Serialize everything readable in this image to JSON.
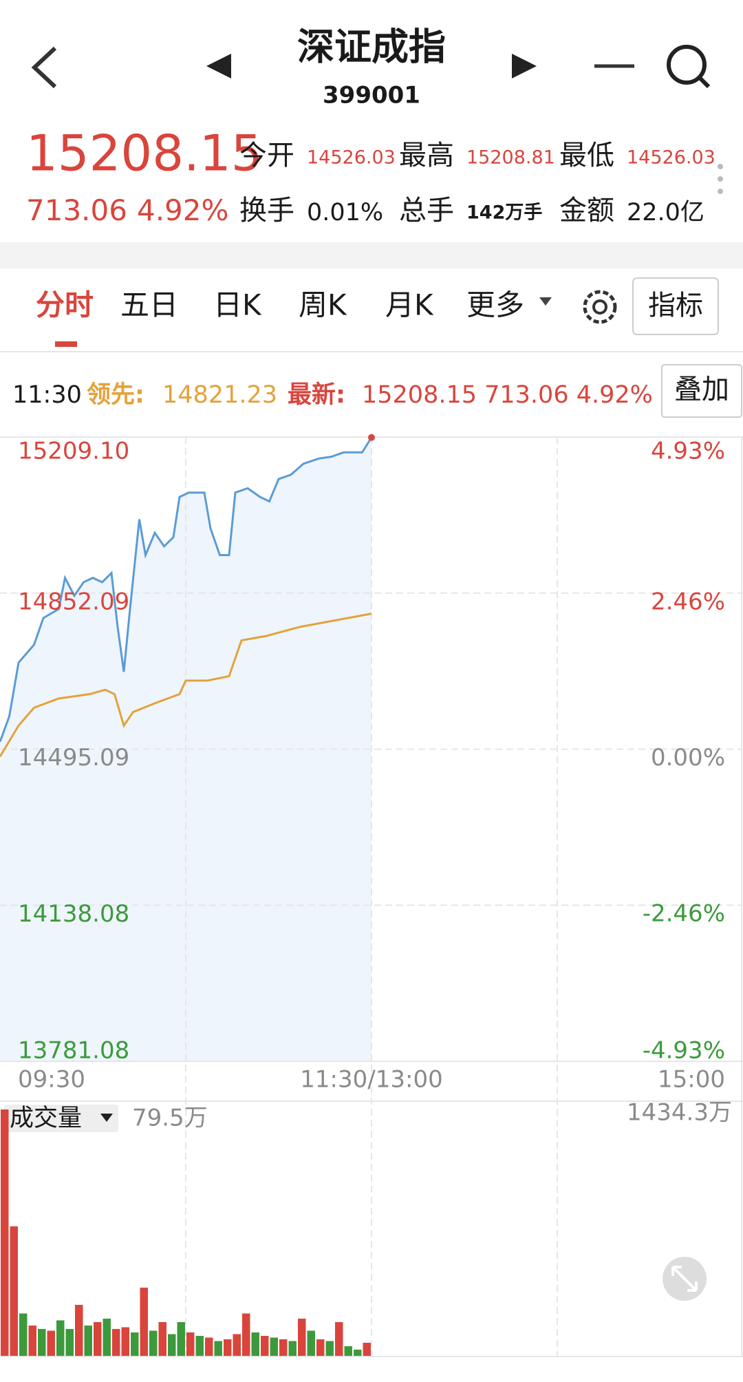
{
  "header": {
    "title": "深证成指",
    "code": "399001"
  },
  "quote": {
    "price": "15208.15",
    "change": "713.06",
    "pct": "4.92%",
    "fields": [
      {
        "label": "今开",
        "value": "14526.03"
      },
      {
        "label": "最高",
        "value": "15208.81"
      },
      {
        "label": "最低",
        "value": "14526.03"
      },
      {
        "label": "换手",
        "value": "0.01%"
      },
      {
        "label": "总手",
        "value": "142万手"
      },
      {
        "label": "金额",
        "value": "22.0亿"
      }
    ]
  },
  "tabs": [
    "分时",
    "五日",
    "日K",
    "周K",
    "月K",
    "更多"
  ],
  "indicator_button": "指标",
  "info": {
    "time": "11:30",
    "lead_label": "领先:",
    "lead_value": "14821.23",
    "latest_label": "最新:",
    "latest_value": "15208.15 713.06 4.92%"
  },
  "overlay_button": "叠加",
  "chart_data": [
    {
      "type": "line",
      "xlim": [
        0,
        240
      ],
      "xticks": [
        {
          "value": 0,
          "label": "09:30"
        },
        {
          "value": 120,
          "label": "11:30/13:00"
        },
        {
          "value": 240,
          "label": "15:00"
        }
      ],
      "xgrid": [
        60,
        120,
        180
      ],
      "ylim": [
        13781.08,
        15209.1
      ],
      "yticks": [
        {
          "value": 15209.1,
          "label": "15209.10"
        },
        14852.09,
        14495.09,
        14138.08,
        13781.08
      ],
      "y2lim": [
        -4.93,
        4.93
      ],
      "y2ticks": [
        {
          "value": 4.93,
          "label": "4.93%"
        },
        {
          "value": 2.46,
          "label": "2.46%"
        },
        {
          "value": 0,
          "label": "0.00%"
        },
        {
          "value": -2.46,
          "label": "-2.46%"
        },
        {
          "value": -4.93,
          "label": "-4.93%"
        }
      ],
      "grid": true,
      "series": [
        {
          "color": "#5b9bd5",
          "fill": "#eef5fc",
          "x": [
            0,
            3,
            6,
            11,
            14,
            19,
            21,
            24,
            27,
            30,
            33,
            36,
            38,
            40,
            42,
            45,
            47,
            50,
            53,
            56,
            58,
            61,
            66,
            68,
            71,
            74,
            76,
            80,
            84,
            87,
            90,
            94,
            98,
            103,
            107,
            111,
            117,
            120
          ],
          "values": [
            14512,
            14570,
            14693,
            14734,
            14795,
            14816,
            14887,
            14846,
            14877,
            14887,
            14877,
            14898,
            14775,
            14672,
            14816,
            15021,
            14939,
            14990,
            14959,
            14980,
            15072,
            15082,
            15082,
            15000,
            14939,
            14939,
            15082,
            15092,
            15072,
            15062,
            15113,
            15123,
            15148,
            15160,
            15164,
            15174,
            15174,
            15208.15
          ]
        },
        {
          "color": "#e3a23a",
          "x": [
            0,
            6,
            11,
            19,
            29,
            34,
            37,
            40,
            43,
            50,
            58,
            60,
            67,
            74,
            78,
            86,
            97,
            120
          ],
          "values": [
            14478,
            14549,
            14590,
            14611,
            14621,
            14631,
            14621,
            14549,
            14580,
            14600,
            14621,
            14652,
            14652,
            14662,
            14744,
            14754,
            14775,
            14805
          ]
        }
      ]
    },
    {
      "type": "bar",
      "title": "成交量",
      "current_label": "79.5万",
      "xlim": [
        0,
        240
      ],
      "ylim": [
        0,
        1434.3
      ],
      "yticks": [
        {
          "value": 1434.3,
          "label": "1434.3万"
        }
      ],
      "x": [
        0,
        3,
        6,
        9,
        12,
        15,
        18,
        21,
        24,
        27,
        30,
        33,
        36,
        39,
        42,
        45,
        48,
        51,
        54,
        57,
        60,
        63,
        66,
        69,
        72,
        75,
        78,
        81,
        84,
        87,
        90,
        93,
        96,
        99,
        102,
        105,
        108,
        111,
        114,
        117
      ],
      "values": [
        1434.3,
        756,
        250,
        180,
        160,
        150,
        210,
        160,
        300,
        180,
        200,
        220,
        160,
        170,
        140,
        400,
        150,
        200,
        130,
        200,
        140,
        120,
        110,
        90,
        100,
        130,
        250,
        140,
        120,
        110,
        100,
        90,
        220,
        150,
        100,
        90,
        200,
        60,
        40,
        80
      ],
      "colors": [
        "#d9453c",
        "#d9453c",
        "#3c9a3c",
        "#d9453c",
        "#3c9a3c",
        "#d9453c",
        "#3c9a3c",
        "#3c9a3c",
        "#d9453c",
        "#3c9a3c",
        "#d9453c",
        "#3c9a3c",
        "#d9453c",
        "#d9453c",
        "#3c9a3c",
        "#d9453c",
        "#3c9a3c",
        "#d9453c",
        "#3c9a3c",
        "#3c9a3c",
        "#d9453c",
        "#3c9a3c",
        "#d9453c",
        "#3c9a3c",
        "#d9453c",
        "#d9453c",
        "#d9453c",
        "#3c9a3c",
        "#d9453c",
        "#3c9a3c",
        "#d9453c",
        "#3c9a3c",
        "#d9453c",
        "#3c9a3c",
        "#d9453c",
        "#3c9a3c",
        "#d9453c",
        "#3c9a3c",
        "#3c9a3c",
        "#d9453c"
      ]
    }
  ]
}
